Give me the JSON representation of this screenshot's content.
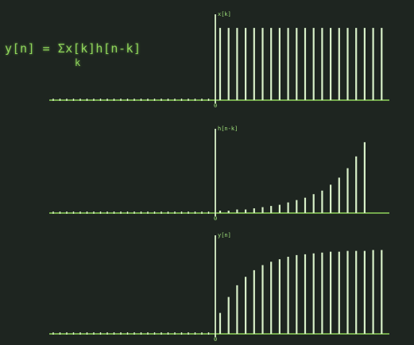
{
  "equation": {
    "line1": "y[n] = Σx[k]h[n-k]",
    "subscript": "k"
  },
  "colors": {
    "background": "#1e2520",
    "stem": "#d8f0c8",
    "axis": "#8fd45a",
    "text": "#8fd45a"
  },
  "chart_data": [
    {
      "type": "bar",
      "style": "stem",
      "signal": "x[k]",
      "axis_label": "x[k]",
      "origin_label": "0",
      "n": [
        0,
        1,
        2,
        3,
        4,
        5,
        6,
        7,
        8,
        9,
        10,
        11,
        12,
        13,
        14,
        15,
        16,
        17,
        18,
        19
      ],
      "values": [
        1,
        1,
        1,
        1,
        1,
        1,
        1,
        1,
        1,
        1,
        1,
        1,
        1,
        1,
        1,
        1,
        1,
        1,
        1,
        1
      ],
      "negative_index_samples": 24,
      "ylim": [
        0,
        1.1
      ]
    },
    {
      "type": "bar",
      "style": "stem",
      "signal": "h[n-k]",
      "axis_label": "h[n-k]",
      "origin_label": "0",
      "n": [
        0,
        1,
        2,
        3,
        4,
        5,
        6,
        7,
        8,
        9,
        10,
        11,
        12,
        13,
        14,
        15,
        16,
        17
      ],
      "values": [
        0.02,
        0.02,
        0.03,
        0.03,
        0.04,
        0.05,
        0.06,
        0.07,
        0.09,
        0.11,
        0.13,
        0.16,
        0.19,
        0.24,
        0.3,
        0.38,
        0.48,
        0.6
      ],
      "negative_index_samples": 24,
      "ylim": [
        0,
        0.66
      ]
    },
    {
      "type": "bar",
      "style": "stem",
      "signal": "y[n]",
      "axis_label": "y[n]",
      "origin_label": "0",
      "n": [
        0,
        1,
        2,
        3,
        4,
        5,
        6,
        7,
        8,
        9,
        10,
        11,
        12,
        13,
        14,
        15,
        16,
        17,
        18,
        19
      ],
      "values": [
        0.25,
        0.44,
        0.58,
        0.68,
        0.76,
        0.82,
        0.86,
        0.89,
        0.92,
        0.94,
        0.95,
        0.96,
        0.97,
        0.98,
        0.98,
        0.99,
        0.99,
        0.99,
        1.0,
        1.0
      ],
      "negative_index_samples": 24,
      "ylim": [
        0,
        1.1
      ]
    }
  ]
}
